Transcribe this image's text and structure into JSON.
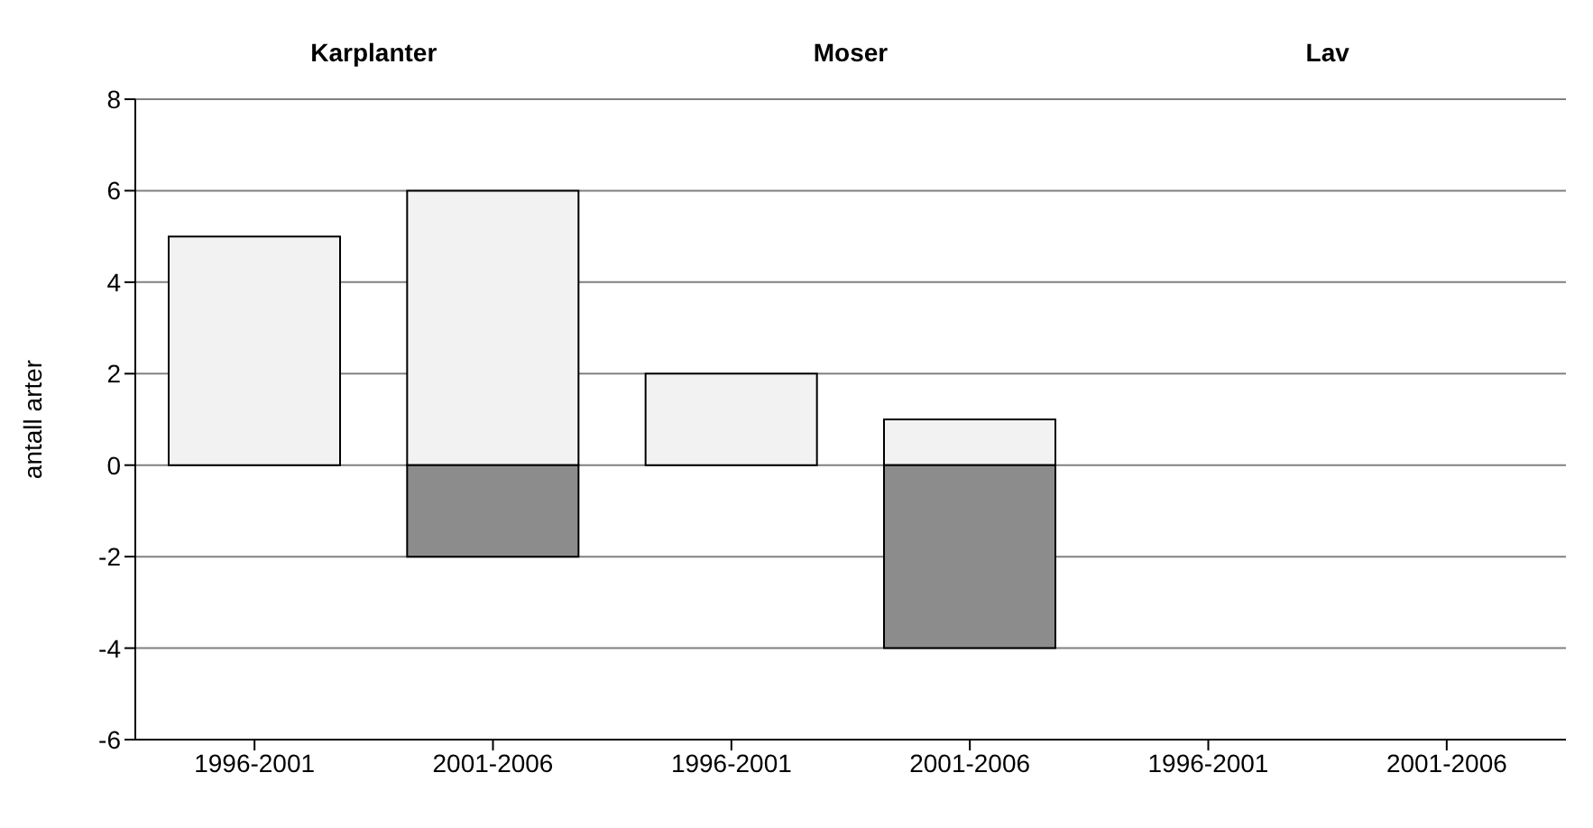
{
  "chart_data": {
    "type": "bar",
    "stacked": true,
    "ylabel": "antall arter",
    "annotations": [
      "Karplanter",
      "Moser",
      "Lav"
    ],
    "categories": [
      "1996-2001",
      "2001-2006",
      "1996-2001",
      "2001-2006",
      "1996-2001",
      "2001-2006"
    ],
    "series": [
      {
        "color": "#f2f2f2",
        "values": [
          5,
          6,
          2,
          1,
          null,
          null
        ]
      },
      {
        "color": "#8c8c8c",
        "values": [
          null,
          -2,
          null,
          -4,
          null,
          null
        ]
      }
    ],
    "ylim": [
      -6,
      8
    ],
    "yticks": [
      -6,
      -4,
      -2,
      0,
      2,
      4,
      6,
      8
    ],
    "grid": "y"
  }
}
